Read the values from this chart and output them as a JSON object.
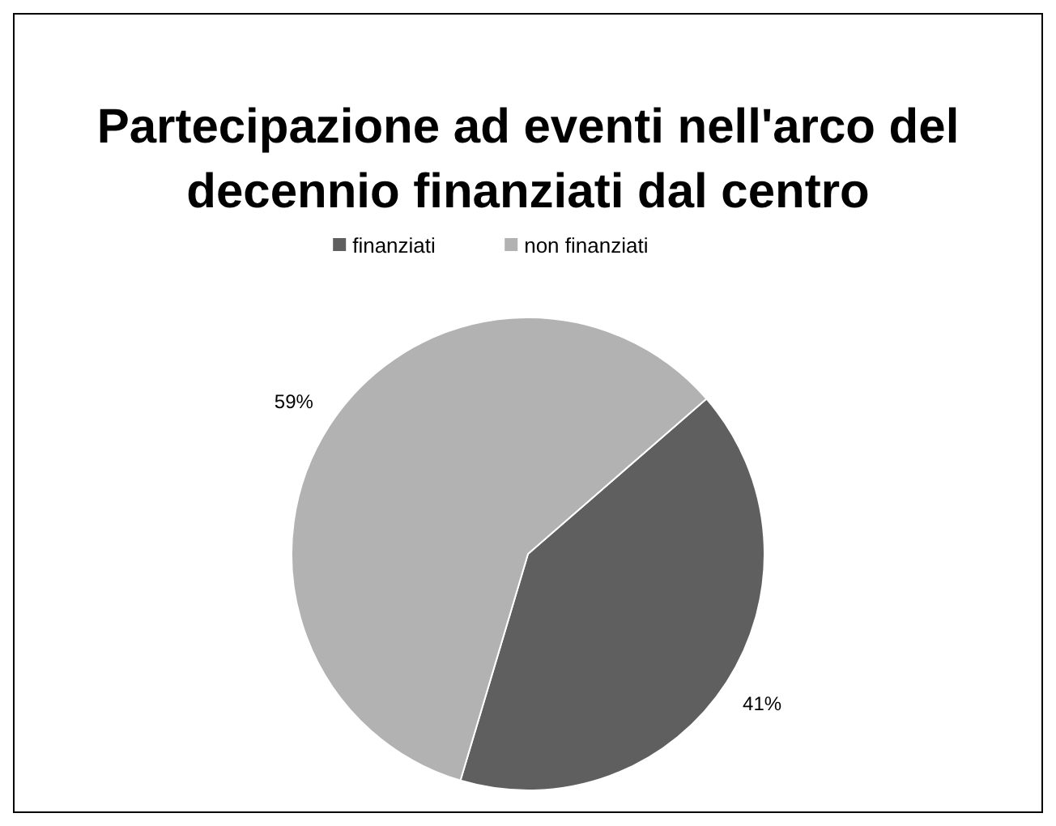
{
  "chart_data": {
    "type": "pie",
    "title": "Partecipazione ad eventi nell'arco del decennio finanziati dal centro",
    "categories": [
      "finanziati",
      "non finanziati"
    ],
    "values": [
      41,
      59
    ],
    "colors": [
      "#5f5f5f",
      "#b2b2b2"
    ],
    "value_labels": [
      "41%",
      "59%"
    ],
    "legend": "top"
  }
}
